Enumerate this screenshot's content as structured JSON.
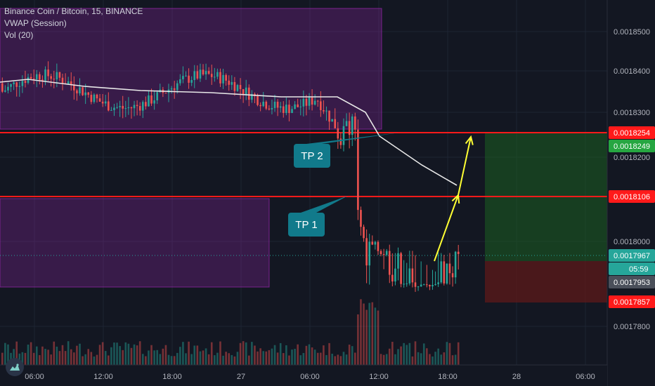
{
  "header": {
    "symbol_line": "Binance Coin / Bitcoin, 15, BINANCE",
    "indicator_1": "VWAP (Session)",
    "indicator_2": "Vol (20)"
  },
  "colors": {
    "background": "#131722",
    "up": "#26a69a",
    "down": "#ef5350",
    "vwap": "#e8e8e8",
    "resistance": "#ff1a1a",
    "zone": "#9c27b0",
    "target_zone": "#1b5e20",
    "stop_zone": "#5d1a1a",
    "label_bg": "#117a8b",
    "arrow": "#ffff33"
  },
  "logo_icon": "tradingview-logo-icon",
  "chart_data": {
    "type": "candlestick",
    "title": "Binance Coin / Bitcoin, 15, BINANCE",
    "xlabel": "",
    "ylabel": "",
    "ylim": [
      0.00177,
      0.001862
    ],
    "grid": true,
    "y_ticks": [
      "0.0017800",
      "0.0018000",
      "0.0018200",
      "0.0018300",
      "0.0018400",
      "0.0018500"
    ],
    "x_ticks": [
      "06:00",
      "12:00",
      "18:00",
      "27",
      "06:00",
      "12:00",
      "18:00",
      "28",
      "06:00"
    ],
    "price_labels": [
      {
        "text": "0.0018254",
        "value": 0.0018254,
        "role": "resistance"
      },
      {
        "text": "0.0018249",
        "value": 0.0018249,
        "role": "target"
      },
      {
        "text": "0.0018106",
        "value": 0.0018106,
        "role": "resistance"
      },
      {
        "text": "0.0017967",
        "value": 0.0017967,
        "role": "last"
      },
      {
        "text": "05:59",
        "role": "countdown"
      },
      {
        "text": "0.0017953",
        "value": 0.0017953,
        "role": "entry"
      },
      {
        "text": "0.0017857",
        "value": 0.0017857,
        "role": "stop"
      }
    ],
    "horizontal_lines": [
      0.0018254,
      0.0018106
    ],
    "annotations": [
      {
        "text": "TP 2",
        "anchor_price": 0.0018254
      },
      {
        "text": "TP 1",
        "anchor_price": 0.0018106
      }
    ],
    "zones": [
      {
        "name": "upper-range",
        "from_price": 0.001854,
        "to_price": 0.00183
      },
      {
        "name": "lower-range",
        "from_price": 0.0018106,
        "to_price": 0.001794
      },
      {
        "name": "target",
        "from_price": 0.0018249,
        "to_price": 0.0017953
      },
      {
        "name": "stop",
        "from_price": 0.0017953,
        "to_price": 0.0017857
      }
    ],
    "series": [
      {
        "name": "VWAP (Session)",
        "type": "line"
      },
      {
        "name": "Vol (20)",
        "type": "bar"
      }
    ]
  }
}
